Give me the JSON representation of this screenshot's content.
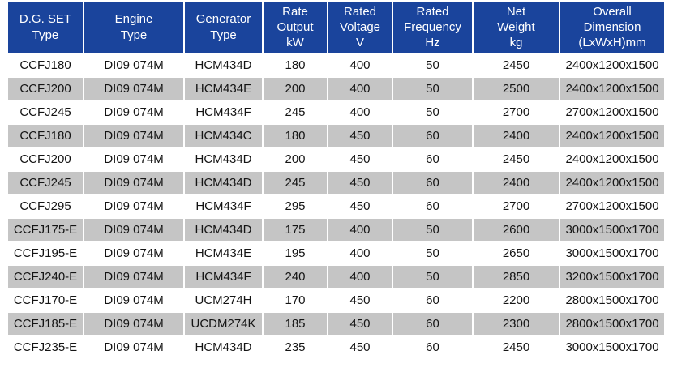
{
  "page": {
    "background": "#FFFFFF"
  },
  "table": {
    "name": "dg-set-specifications",
    "colors": {
      "header_bg": "#1A449C",
      "header_text": "#FFFFFF",
      "row_bg": "#FFFFFF",
      "row_alt_bg": "#C5C5C5",
      "body_text": "#141414",
      "grid_gap": "#FFFFFF"
    },
    "columns": [
      {
        "id": "dg-set-type",
        "label": "D.G. SET\nType"
      },
      {
        "id": "engine-type",
        "label": "Engine\nType"
      },
      {
        "id": "generator-type",
        "label": "Generator\nType"
      },
      {
        "id": "rate-output-kw",
        "label": "Rate\nOutput\nkW"
      },
      {
        "id": "rated-voltage-v",
        "label": "Rated\nVoltage\nV"
      },
      {
        "id": "rated-frequency-hz",
        "label": "Rated\nFrequency\nHz"
      },
      {
        "id": "net-weight-kg",
        "label": "Net\nWeight\nkg"
      },
      {
        "id": "overall-dimension",
        "label": "Overall\nDimension\n(LxWxH)mm"
      }
    ],
    "rows": [
      [
        "CCFJ180",
        "DI09 074M",
        "HCM434D",
        "180",
        "400",
        "50",
        "2450",
        "2400x1200x1500"
      ],
      [
        "CCFJ200",
        "DI09 074M",
        "HCM434E",
        "200",
        "400",
        "50",
        "2500",
        "2400x1200x1500"
      ],
      [
        "CCFJ245",
        "DI09 074M",
        "HCM434F",
        "245",
        "400",
        "50",
        "2700",
        "2700x1200x1500"
      ],
      [
        "CCFJ180",
        "DI09 074M",
        "HCM434C",
        "180",
        "450",
        "60",
        "2400",
        "2400x1200x1500"
      ],
      [
        "CCFJ200",
        "DI09 074M",
        "HCM434D",
        "200",
        "450",
        "60",
        "2450",
        "2400x1200x1500"
      ],
      [
        "CCFJ245",
        "DI09 074M",
        "HCM434D",
        "245",
        "450",
        "60",
        "2400",
        "2400x1200x1500"
      ],
      [
        "CCFJ295",
        "DI09 074M",
        "HCM434F",
        "295",
        "450",
        "60",
        "2700",
        "2700x1200x1500"
      ],
      [
        "CCFJ175-E",
        "DI09 074M",
        "HCM434D",
        "175",
        "400",
        "50",
        "2600",
        "3000x1500x1700"
      ],
      [
        "CCFJ195-E",
        "DI09 074M",
        "HCM434E",
        "195",
        "400",
        "50",
        "2650",
        "3000x1500x1700"
      ],
      [
        "CCFJ240-E",
        "DI09 074M",
        "HCM434F",
        "240",
        "400",
        "50",
        "2850",
        "3200x1500x1700"
      ],
      [
        "CCFJ170-E",
        "DI09 074M",
        "UCM274H",
        "170",
        "450",
        "60",
        "2200",
        "2800x1500x1700"
      ],
      [
        "CCFJ185-E",
        "DI09 074M",
        "UCDM274K",
        "185",
        "450",
        "60",
        "2300",
        "2800x1500x1700"
      ],
      [
        "CCFJ235-E",
        "DI09 074M",
        "HCM434D",
        "235",
        "450",
        "60",
        "2450",
        "3000x1500x1700"
      ]
    ]
  }
}
